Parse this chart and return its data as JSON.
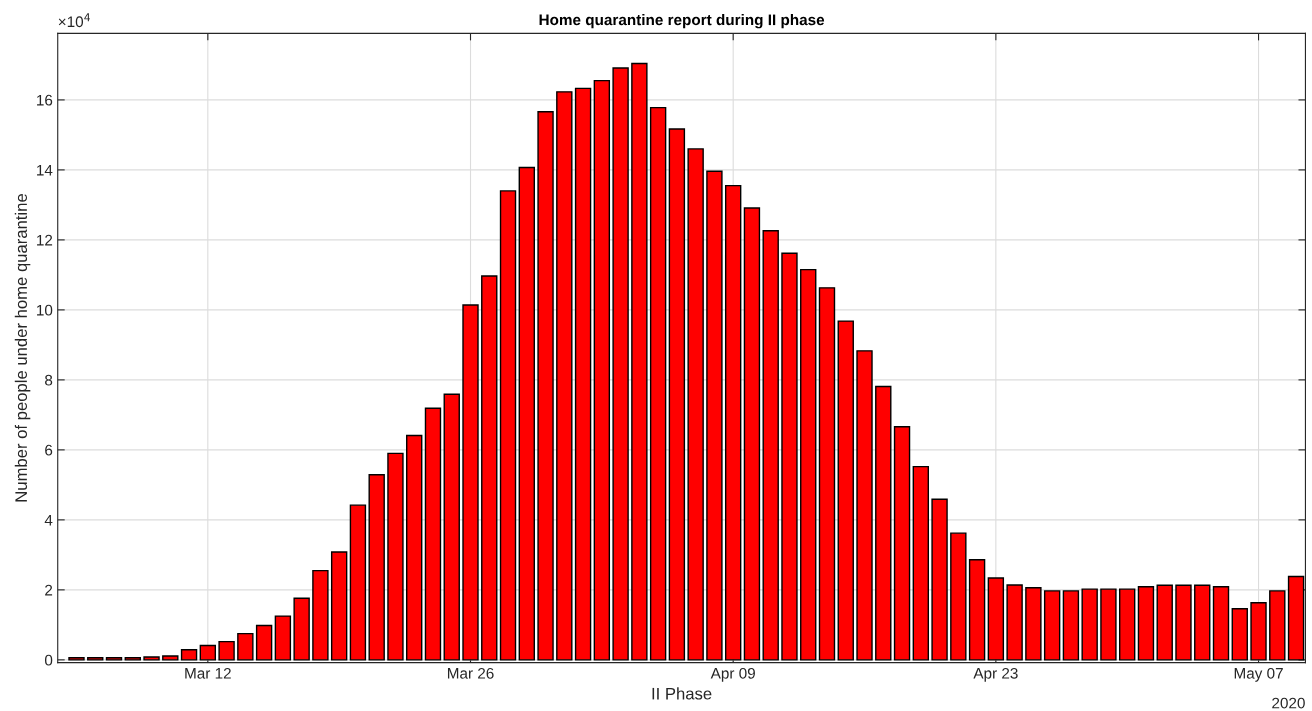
{
  "chart_data": {
    "type": "bar",
    "title": "Home quarantine report during II phase",
    "xlabel": "II Phase",
    "ylabel": "Number of people under home quarantine",
    "annotations": [
      "×10$^{4}$",
      "2020"
    ],
    "x": [
      "2020-03-05",
      "2020-03-06",
      "2020-03-07",
      "2020-03-08",
      "2020-03-09",
      "2020-03-10",
      "2020-03-11",
      "2020-03-12",
      "2020-03-13",
      "2020-03-14",
      "2020-03-15",
      "2020-03-16",
      "2020-03-17",
      "2020-03-18",
      "2020-03-19",
      "2020-03-20",
      "2020-03-21",
      "2020-03-22",
      "2020-03-23",
      "2020-03-24",
      "2020-03-25",
      "2020-03-26",
      "2020-03-27",
      "2020-03-28",
      "2020-03-29",
      "2020-03-30",
      "2020-03-31",
      "2020-04-01",
      "2020-04-02",
      "2020-04-03",
      "2020-04-04",
      "2020-04-05",
      "2020-04-06",
      "2020-04-07",
      "2020-04-08",
      "2020-04-09",
      "2020-04-10",
      "2020-04-11",
      "2020-04-12",
      "2020-04-13",
      "2020-04-14",
      "2020-04-15",
      "2020-04-16",
      "2020-04-17",
      "2020-04-18",
      "2020-04-19",
      "2020-04-20",
      "2020-04-21",
      "2020-04-22",
      "2020-04-23",
      "2020-04-24",
      "2020-04-25",
      "2020-04-26",
      "2020-04-27",
      "2020-04-28",
      "2020-04-29",
      "2020-04-30",
      "2020-05-01",
      "2020-05-02",
      "2020-05-03",
      "2020-05-04",
      "2020-05-05",
      "2020-05-06",
      "2020-05-07",
      "2020-05-08",
      "2020-05-09"
    ],
    "series": [
      {
        "color": "#ff0000",
        "values": [
          0.06,
          0.06,
          0.06,
          0.06,
          0.08,
          0.11,
          0.29,
          0.41,
          0.52,
          0.75,
          0.98,
          1.25,
          1.76,
          2.55,
          3.08,
          4.42,
          5.29,
          5.9,
          6.41,
          7.19,
          7.59,
          10.14,
          10.97,
          13.4,
          14.07,
          15.66,
          16.23,
          16.33,
          16.55,
          16.91,
          17.04,
          15.78,
          15.17,
          14.6,
          13.96,
          13.55,
          12.91,
          12.26,
          11.62,
          11.15,
          10.63,
          9.68,
          8.83,
          7.81,
          6.66,
          5.52,
          4.59,
          3.62,
          2.86,
          2.34,
          2.14,
          2.06,
          1.97,
          1.97,
          2.02,
          2.02,
          2.02,
          2.09,
          2.13,
          2.13,
          2.13,
          2.09,
          1.46,
          1.63,
          1.97,
          2.38
        ]
      }
    ],
    "xlim": [
      "2020-03-04",
      "2020-05-09T12:00"
    ],
    "xticks": [
      {
        "value": "2020-03-12",
        "label": "Mar 12"
      },
      {
        "value": "2020-03-26",
        "label": "Mar 26"
      },
      {
        "value": "2020-04-09",
        "label": "Apr 09"
      },
      {
        "value": "2020-04-23",
        "label": "Apr 23"
      },
      {
        "value": "2020-05-07",
        "label": "May 07"
      }
    ],
    "ylim": [
      -0.08,
      17.9
    ],
    "yticks": [
      0,
      2,
      4,
      6,
      8,
      10,
      12,
      14,
      16
    ],
    "grid": true,
    "legend": false
  }
}
